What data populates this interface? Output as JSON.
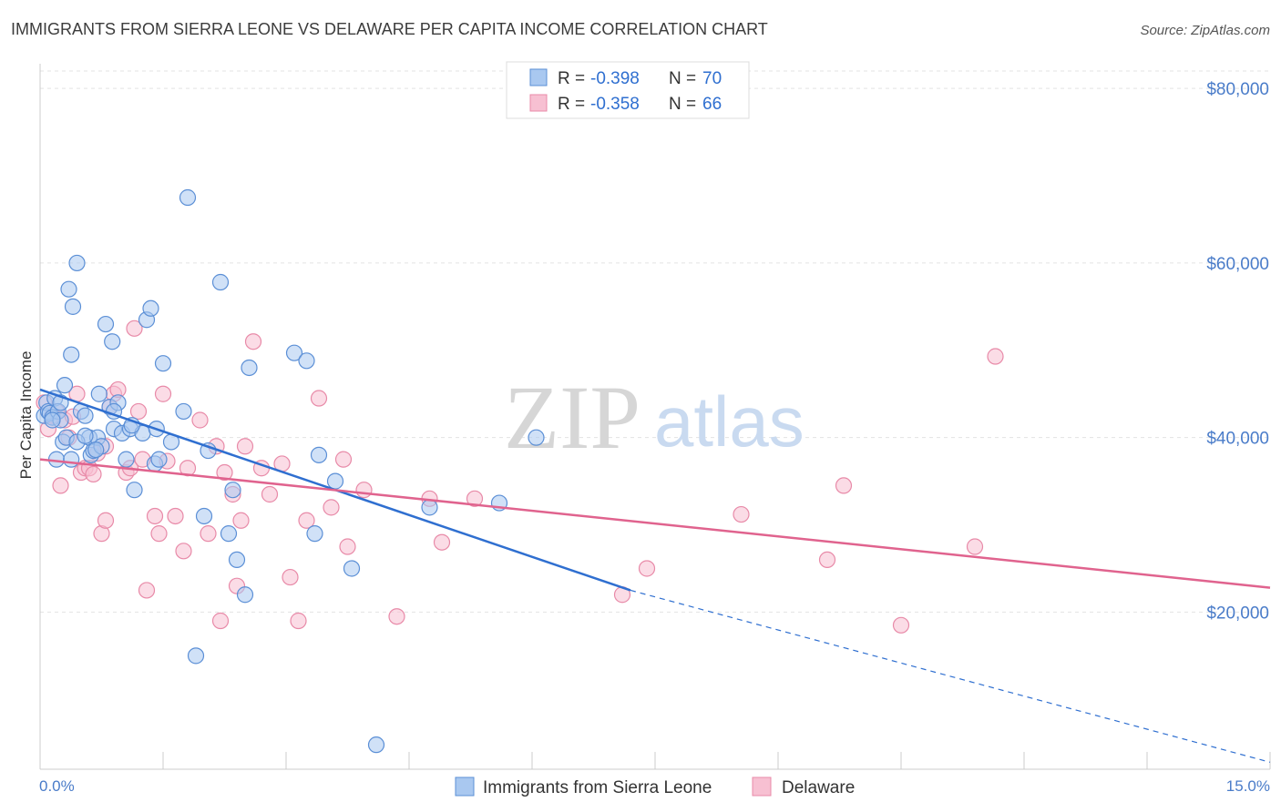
{
  "title": "IMMIGRANTS FROM SIERRA LEONE VS DELAWARE PER CAPITA INCOME CORRELATION CHART",
  "source": "Source: ZipAtlas.com",
  "watermark": {
    "zip": "ZIP",
    "atlas": "atlas"
  },
  "legend": {
    "r_label": "R =",
    "n_label": "N =",
    "rows": [
      {
        "r": "-0.398",
        "n": "70"
      },
      {
        "r": "-0.358",
        "n": "66"
      }
    ]
  },
  "colors": {
    "blue_fill": "#a9c8f0",
    "blue_stroke": "#5b8fd6",
    "blue_line": "#2f6fd0",
    "pink_fill": "#f7c0d2",
    "pink_stroke": "#e88aa8",
    "pink_line": "#e0638e",
    "grid": "#e3e3e3",
    "axis_text": "#4a7cc9"
  },
  "chart_data": {
    "type": "scatter",
    "title": "IMMIGRANTS FROM SIERRA LEONE VS DELAWARE PER CAPITA INCOME CORRELATION CHART",
    "xlabel": "",
    "ylabel": "Per Capita Income",
    "xlim": [
      0,
      15
    ],
    "ylim": [
      2000,
      82000
    ],
    "x_tick_labels": [
      "0.0%",
      "15.0%"
    ],
    "y_ticks": [
      {
        "value": 20000,
        "label": "$20,000"
      },
      {
        "value": 40000,
        "label": "$40,000"
      },
      {
        "value": 60000,
        "label": "$60,000"
      },
      {
        "value": 80000,
        "label": "$80,000"
      }
    ],
    "series": [
      {
        "name": "Immigrants from Sierra Leone",
        "color": "blue",
        "trend": {
          "x0": 0.0,
          "y0": 45500,
          "x1": 7.2,
          "y1": 22500,
          "dash_to_x": 15.0,
          "dash_to_y": 2800
        },
        "points": [
          [
            0.05,
            42.5
          ],
          [
            0.08,
            44
          ],
          [
            0.1,
            43
          ],
          [
            0.12,
            42.8
          ],
          [
            0.15,
            42.3
          ],
          [
            0.18,
            44.5
          ],
          [
            0.2,
            37.5
          ],
          [
            0.22,
            43
          ],
          [
            0.25,
            42
          ],
          [
            0.28,
            39.5
          ],
          [
            0.3,
            46
          ],
          [
            0.32,
            40
          ],
          [
            0.35,
            57
          ],
          [
            0.38,
            49.5
          ],
          [
            0.4,
            55
          ],
          [
            0.45,
            60
          ],
          [
            0.5,
            43
          ],
          [
            0.55,
            42.5
          ],
          [
            0.6,
            40
          ],
          [
            0.62,
            38
          ],
          [
            0.65,
            38.5
          ],
          [
            0.7,
            40
          ],
          [
            0.72,
            45
          ],
          [
            0.75,
            39
          ],
          [
            0.8,
            53
          ],
          [
            0.85,
            43.5
          ],
          [
            0.88,
            51
          ],
          [
            0.9,
            41
          ],
          [
            0.95,
            44
          ],
          [
            1.0,
            40.5
          ],
          [
            1.05,
            37.5
          ],
          [
            1.1,
            41
          ],
          [
            1.15,
            34
          ],
          [
            1.25,
            40.5
          ],
          [
            1.3,
            53.5
          ],
          [
            1.35,
            54.8
          ],
          [
            1.4,
            37
          ],
          [
            1.45,
            37.5
          ],
          [
            1.5,
            48.5
          ],
          [
            1.6,
            39.5
          ],
          [
            1.75,
            43
          ],
          [
            1.8,
            67.5
          ],
          [
            1.9,
            15
          ],
          [
            2.0,
            31
          ],
          [
            2.05,
            38.5
          ],
          [
            2.2,
            57.8
          ],
          [
            2.3,
            29
          ],
          [
            2.35,
            34
          ],
          [
            2.4,
            26
          ],
          [
            2.5,
            22
          ],
          [
            2.55,
            48
          ],
          [
            3.1,
            49.7
          ],
          [
            3.25,
            48.8
          ],
          [
            3.35,
            29
          ],
          [
            3.4,
            38
          ],
          [
            3.6,
            35
          ],
          [
            3.8,
            25
          ],
          [
            4.1,
            4.8
          ],
          [
            4.75,
            32
          ],
          [
            5.6,
            32.5
          ],
          [
            6.05,
            40
          ],
          [
            0.15,
            42
          ],
          [
            0.25,
            44
          ],
          [
            0.45,
            39.5
          ],
          [
            0.68,
            38.6
          ],
          [
            0.9,
            43
          ],
          [
            1.12,
            41.4
          ],
          [
            1.42,
            41
          ],
          [
            0.38,
            37.5
          ],
          [
            0.55,
            40.2
          ]
        ]
      },
      {
        "name": "Delaware",
        "color": "pink",
        "trend": {
          "x0": 0.0,
          "y0": 37500,
          "x1": 15.0,
          "y1": 22800
        },
        "points": [
          [
            0.05,
            44
          ],
          [
            0.1,
            41
          ],
          [
            0.15,
            42.5
          ],
          [
            0.2,
            43
          ],
          [
            0.25,
            34.5
          ],
          [
            0.3,
            42
          ],
          [
            0.35,
            40
          ],
          [
            0.45,
            45
          ],
          [
            0.5,
            36
          ],
          [
            0.55,
            36.5
          ],
          [
            0.6,
            36.5
          ],
          [
            0.65,
            35.8
          ],
          [
            0.7,
            38.2
          ],
          [
            0.75,
            29
          ],
          [
            0.8,
            30.5
          ],
          [
            0.85,
            43.5
          ],
          [
            0.9,
            45
          ],
          [
            0.95,
            45.5
          ],
          [
            1.05,
            36
          ],
          [
            1.1,
            36.5
          ],
          [
            1.15,
            52.5
          ],
          [
            1.25,
            37.5
          ],
          [
            1.3,
            22.5
          ],
          [
            1.4,
            31
          ],
          [
            1.45,
            29
          ],
          [
            1.5,
            45
          ],
          [
            1.55,
            37.3
          ],
          [
            1.65,
            31
          ],
          [
            1.75,
            27
          ],
          [
            1.8,
            36.5
          ],
          [
            1.95,
            42
          ],
          [
            2.05,
            29
          ],
          [
            2.15,
            39
          ],
          [
            2.2,
            19
          ],
          [
            2.25,
            36
          ],
          [
            2.35,
            33.5
          ],
          [
            2.4,
            23
          ],
          [
            2.45,
            30.5
          ],
          [
            2.5,
            39
          ],
          [
            2.6,
            51
          ],
          [
            2.7,
            36.5
          ],
          [
            2.8,
            33.5
          ],
          [
            2.95,
            37
          ],
          [
            3.05,
            24
          ],
          [
            3.15,
            19
          ],
          [
            3.25,
            30.5
          ],
          [
            3.4,
            44.5
          ],
          [
            3.55,
            32
          ],
          [
            3.7,
            37.5
          ],
          [
            3.75,
            27.5
          ],
          [
            3.95,
            34
          ],
          [
            4.35,
            19.5
          ],
          [
            4.75,
            33
          ],
          [
            4.9,
            28
          ],
          [
            5.3,
            33
          ],
          [
            7.1,
            22
          ],
          [
            7.4,
            25
          ],
          [
            8.55,
            31.2
          ],
          [
            9.6,
            26
          ],
          [
            9.8,
            34.5
          ],
          [
            10.5,
            18.5
          ],
          [
            11.4,
            27.5
          ],
          [
            11.65,
            49.3
          ],
          [
            0.4,
            42.4
          ],
          [
            0.8,
            39
          ],
          [
            1.2,
            43
          ]
        ]
      }
    ]
  },
  "bottom_legend": [
    "Immigrants from Sierra Leone",
    "Delaware"
  ]
}
